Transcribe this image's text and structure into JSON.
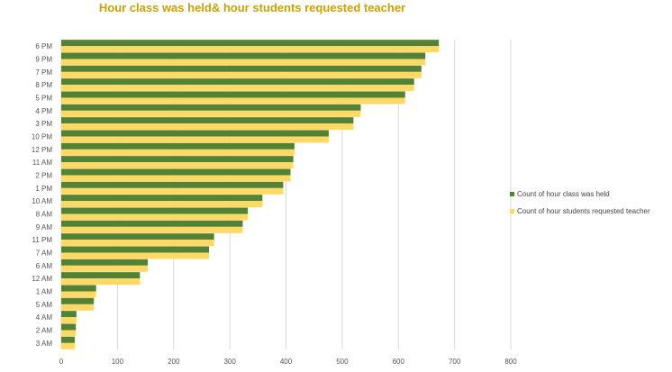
{
  "chart_data": {
    "type": "bar",
    "orientation": "horizontal",
    "title": "Hour class was held& hour students requested teacher",
    "categories": [
      "6 PM",
      "9 PM",
      "7 PM",
      "8 PM",
      "5 PM",
      "4 PM",
      "3 PM",
      "10 PM",
      "12 PM",
      "11 AM",
      "2 PM",
      "1 PM",
      "10 AM",
      "8 AM",
      "9 AM",
      "11 PM",
      "7 AM",
      "6 AM",
      "12 AM",
      "1 AM",
      "5 AM",
      "4 AM",
      "2 AM",
      "3 AM"
    ],
    "series": [
      {
        "name": "Count of hour class was held",
        "color": "#548235",
        "values": [
          672,
          648,
          641,
          628,
          612,
          533,
          520,
          476,
          415,
          413,
          408,
          395,
          358,
          332,
          323,
          272,
          263,
          154,
          140,
          62,
          58,
          27,
          26,
          24
        ]
      },
      {
        "name": "Count of hour students requested teacher",
        "color": "#ffd966",
        "values": [
          672,
          648,
          641,
          628,
          612,
          533,
          520,
          476,
          415,
          413,
          408,
          395,
          358,
          332,
          323,
          272,
          263,
          154,
          140,
          62,
          58,
          27,
          26,
          24
        ]
      }
    ],
    "xlim": [
      0,
      800
    ],
    "xticks": [
      0,
      100,
      200,
      300,
      400,
      500,
      600,
      700,
      800
    ],
    "grid": true,
    "legend": "right"
  }
}
